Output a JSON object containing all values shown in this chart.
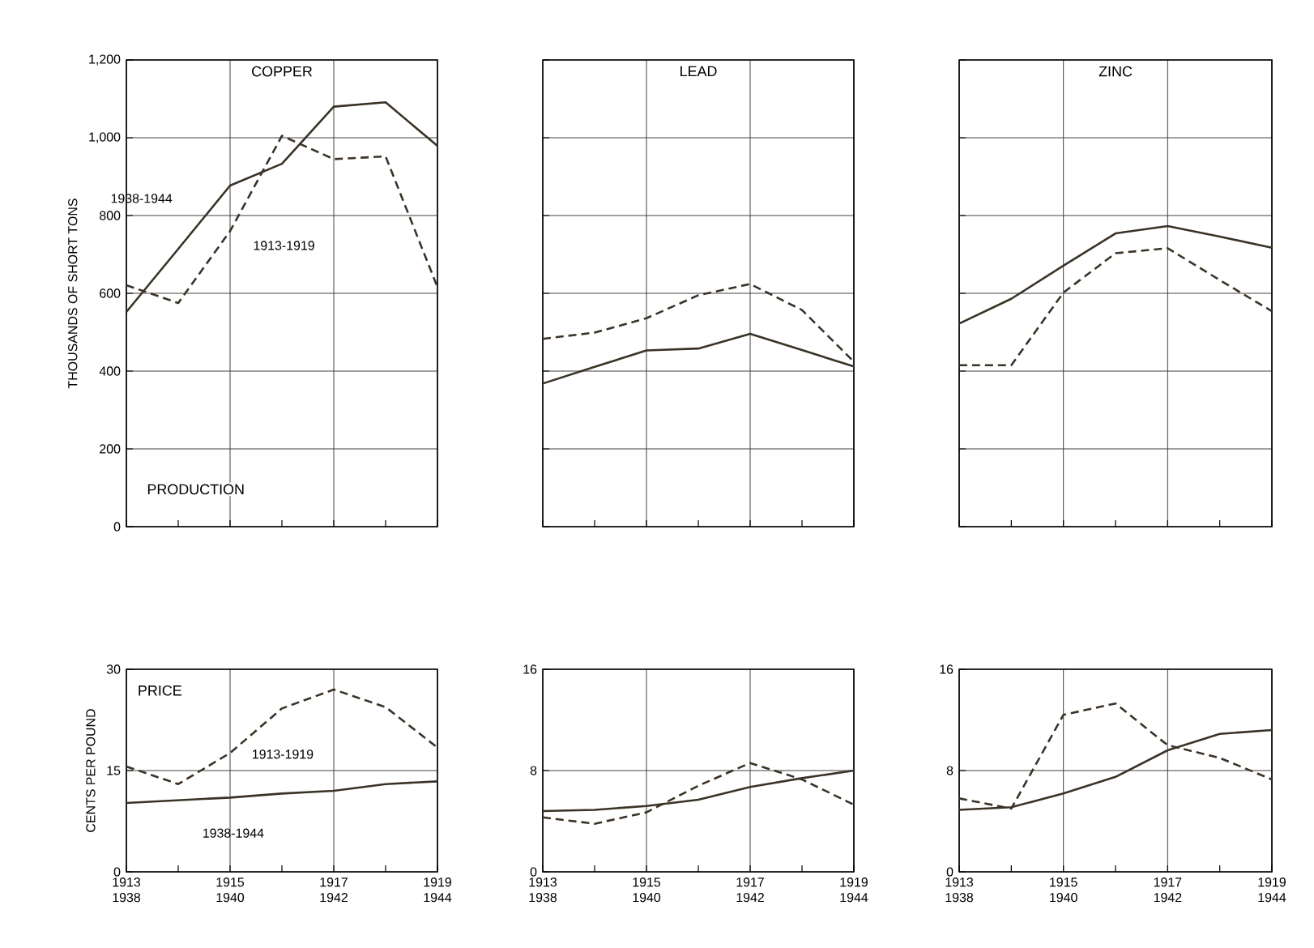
{
  "chart_data": [
    {
      "type": "line",
      "title": "COPPER",
      "ylabel": "THOUSANDS OF SHORT TONS",
      "annotations": [
        "PRODUCTION"
      ],
      "categories": [
        "1913 1938",
        null,
        "1915 1940",
        null,
        "1917 1942",
        null,
        "1919 1944"
      ],
      "ylim": [
        0,
        1200
      ],
      "yticks": [
        0,
        200,
        400,
        600,
        800,
        {
          "value": 1000,
          "label": "1,000"
        },
        {
          "value": 1200,
          "label": "1,200"
        }
      ],
      "grid": true,
      "tick_labels": "y",
      "series": [
        {
          "name": "1913-1919",
          "color": "#3a3226",
          "line_style": "dashed",
          "values": [
            621,
            575,
            760,
            1005,
            945,
            952,
            616
          ]
        },
        {
          "name": "1938-1944",
          "color": "#3a3226",
          "line_style": "solid",
          "values": [
            552,
            714,
            877,
            933,
            1080,
            1091,
            979
          ]
        }
      ]
    },
    {
      "type": "line",
      "title": "LEAD",
      "categories": [
        "1913 1938",
        null,
        "1915 1940",
        null,
        "1917 1942",
        null,
        "1919 1944"
      ],
      "ylim": [
        0,
        1200
      ],
      "yticks": [
        0,
        200,
        400,
        600,
        800,
        1000,
        1200
      ],
      "grid": true,
      "tick_labels": false,
      "series": [
        {
          "color": "#3a3226",
          "line_style": "dashed",
          "values": [
            483,
            499,
            536,
            595,
            624,
            557,
            424
          ]
        },
        {
          "color": "#3a3226",
          "line_style": "solid",
          "values": [
            368,
            411,
            453,
            458,
            496,
            454,
            412
          ]
        }
      ]
    },
    {
      "type": "line",
      "title": "ZINC",
      "categories": [
        "1913 1938",
        null,
        "1915 1940",
        null,
        "1917 1942",
        null,
        "1919 1944"
      ],
      "ylim": [
        0,
        1200
      ],
      "yticks": [
        0,
        200,
        400,
        600,
        800,
        1000,
        1200
      ],
      "grid": true,
      "tick_labels": false,
      "series": [
        {
          "color": "#3a3226",
          "line_style": "dashed",
          "values": [
            415,
            415,
            602,
            703,
            716,
            634,
            554
          ]
        },
        {
          "color": "#3a3226",
          "line_style": "solid",
          "values": [
            522,
            586,
            671,
            754,
            773,
            746,
            717
          ]
        }
      ]
    },
    {
      "type": "line",
      "ylabel": "CENTS PER POUND",
      "annotations": [
        "PRICE"
      ],
      "categories": [
        "1913 1938",
        null,
        "1915 1940",
        null,
        "1917 1942",
        null,
        "1919 1944"
      ],
      "ylim": [
        0,
        30
      ],
      "yticks": [
        0,
        15,
        30
      ],
      "grid": true,
      "series": [
        {
          "name": "1913-1919",
          "color": "#3a3226",
          "line_style": "dashed",
          "values": [
            15.6,
            13.0,
            17.6,
            24.2,
            27.0,
            24.4,
            18.4
          ]
        },
        {
          "name": "1938-1944",
          "color": "#3a3226",
          "line_style": "solid",
          "values": [
            10.2,
            10.6,
            11.0,
            11.6,
            12.0,
            13.0,
            13.4
          ]
        }
      ]
    },
    {
      "type": "line",
      "categories": [
        "1913 1938",
        null,
        "1915 1940",
        null,
        "1917 1942",
        null,
        "1919 1944"
      ],
      "ylim": [
        0,
        16
      ],
      "yticks": [
        0,
        8,
        16
      ],
      "grid": true,
      "series": [
        {
          "color": "#3a3226",
          "line_style": "dashed",
          "values": [
            4.3,
            3.8,
            4.7,
            6.8,
            8.6,
            7.3,
            5.3
          ]
        },
        {
          "color": "#3a3226",
          "line_style": "solid",
          "values": [
            4.8,
            4.9,
            5.2,
            5.7,
            6.7,
            7.4,
            8.0
          ]
        }
      ]
    },
    {
      "type": "line",
      "categories": [
        "1913 1938",
        null,
        "1915 1940",
        null,
        "1917 1942",
        null,
        "1919 1944"
      ],
      "ylim": [
        0,
        16
      ],
      "yticks": [
        0,
        8,
        16
      ],
      "grid": true,
      "series": [
        {
          "color": "#3a3226",
          "line_style": "dashed",
          "values": [
            5.8,
            5.0,
            12.4,
            13.3,
            10.0,
            9.0,
            7.3
          ]
        },
        {
          "color": "#3a3226",
          "line_style": "solid",
          "values": [
            4.9,
            5.1,
            6.2,
            7.5,
            9.6,
            10.9,
            11.2
          ]
        }
      ]
    }
  ]
}
